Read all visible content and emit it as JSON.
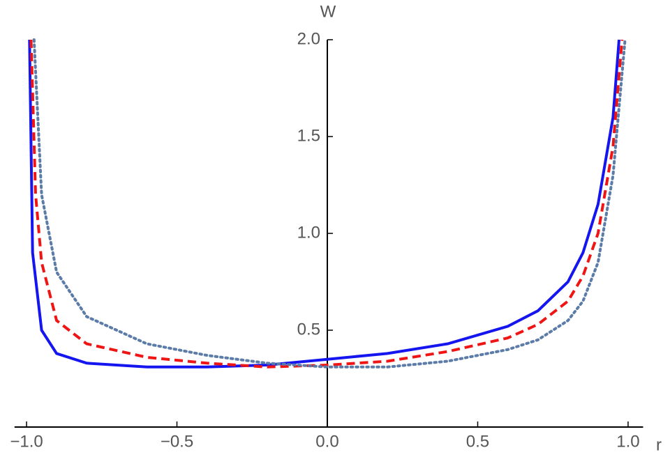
{
  "chart_data": {
    "type": "line",
    "xlabel": "r",
    "ylabel": "W",
    "xlim": [
      -1.04,
      1.05
    ],
    "ylim": [
      0,
      2.0
    ],
    "xticks": [
      {
        "value": -1.0,
        "label": "−1.0"
      },
      {
        "value": -0.5,
        "label": "−0.5"
      },
      {
        "value": 0.0,
        "label": "0.0"
      },
      0.5,
      {
        "value": 1.0,
        "label": "1.0"
      }
    ],
    "yticks": [
      0.5,
      {
        "value": 1.0,
        "label": "1.0"
      },
      1.5,
      {
        "value": 2.0,
        "label": "2.0"
      }
    ],
    "grid": false,
    "series": [
      {
        "color": "#1515f0",
        "dash": "solid",
        "x": [
          -0.99,
          -0.98,
          -0.95,
          -0.9,
          -0.8,
          -0.6,
          -0.4,
          -0.2,
          0,
          0.2,
          0.4,
          0.6,
          0.7,
          0.8,
          0.85,
          0.9,
          0.95,
          0.97
        ],
        "values": [
          2.0,
          0.9,
          0.5,
          0.38,
          0.33,
          0.31,
          0.31,
          0.32,
          0.35,
          0.38,
          0.43,
          0.52,
          0.6,
          0.75,
          0.9,
          1.15,
          1.6,
          2.0
        ]
      },
      {
        "color": "#f01515",
        "dash": "dashed",
        "x": [
          -0.985,
          -0.97,
          -0.95,
          -0.9,
          -0.8,
          -0.6,
          -0.4,
          -0.2,
          0,
          0.2,
          0.4,
          0.6,
          0.7,
          0.8,
          0.85,
          0.9,
          0.95,
          0.98
        ],
        "values": [
          2.0,
          1.2,
          0.85,
          0.55,
          0.43,
          0.36,
          0.33,
          0.31,
          0.32,
          0.34,
          0.39,
          0.46,
          0.53,
          0.65,
          0.78,
          1.0,
          1.45,
          2.0
        ]
      },
      {
        "color": "#5b7ba8",
        "dash": "dotted",
        "x": [
          -0.975,
          -0.95,
          -0.9,
          -0.8,
          -0.6,
          -0.4,
          -0.2,
          0,
          0.2,
          0.4,
          0.6,
          0.7,
          0.8,
          0.85,
          0.9,
          0.95,
          0.99
        ],
        "values": [
          2.0,
          1.2,
          0.8,
          0.57,
          0.43,
          0.37,
          0.33,
          0.31,
          0.31,
          0.34,
          0.4,
          0.45,
          0.55,
          0.65,
          0.85,
          1.3,
          2.0
        ]
      }
    ]
  }
}
